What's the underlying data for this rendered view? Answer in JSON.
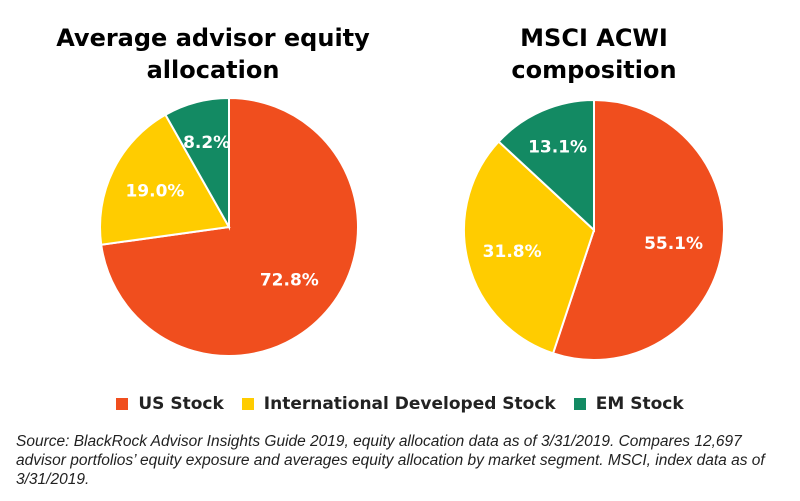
{
  "chart_data": [
    {
      "type": "pie",
      "title": "Average advisor equity\nallocation",
      "categories": [
        "US Stock",
        "International Developed Stock",
        "EM Stock"
      ],
      "values": [
        72.8,
        19.0,
        8.2
      ],
      "labels": [
        "72.8%",
        "19.0%",
        "8.2%"
      ],
      "colors": [
        "#F04E1E",
        "#FFCC00",
        "#138A63"
      ]
    },
    {
      "type": "pie",
      "title": "MSCI ACWI\ncomposition",
      "categories": [
        "US Stock",
        "International Developed Stock",
        "EM Stock"
      ],
      "values": [
        55.1,
        31.8,
        13.1
      ],
      "labels": [
        "55.1%",
        "31.8%",
        "13.1%"
      ],
      "colors": [
        "#F04E1E",
        "#FFCC00",
        "#138A63"
      ]
    }
  ],
  "legend": {
    "placement": "bottom",
    "items": [
      {
        "label": "US Stock",
        "color": "#F04E1E"
      },
      {
        "label": "International Developed Stock",
        "color": "#FFCC00"
      },
      {
        "label": "EM Stock",
        "color": "#138A63"
      }
    ]
  },
  "source_note": "Source: BlackRock Advisor Insights Guide 2019, equity allocation data as of 3/31/2019. Compares 12,697 advisor portfolios’ equity exposure and averages equity allocation by market segment. MSCI, index data as of 3/31/2019."
}
